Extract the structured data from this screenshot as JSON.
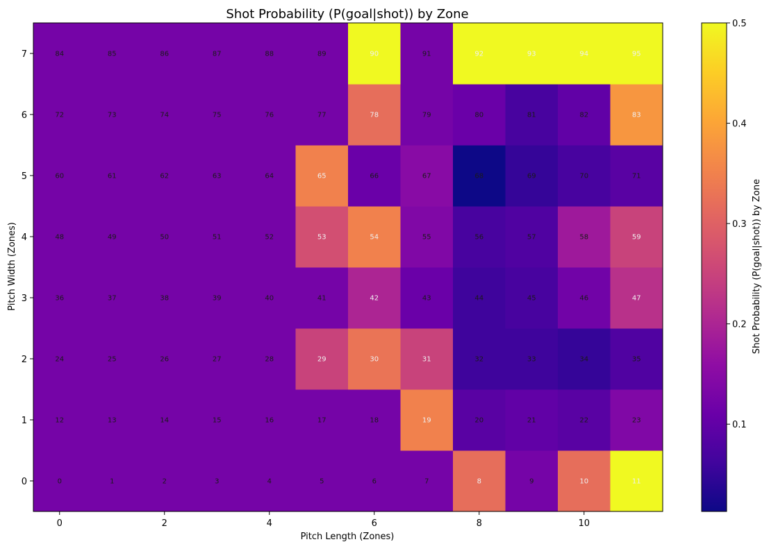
{
  "chart_data": {
    "type": "heatmap",
    "title": "Shot Probability (P(goal|shot)) by Zone",
    "xlabel": "Pitch Length (Zones)",
    "ylabel": "Pitch Width (Zones)",
    "colorbar_label": "Shot Probability (P(goal|shot)) by Zone",
    "colormap": "plasma",
    "x_range": [
      -0.5,
      11.5
    ],
    "y_range": [
      -0.5,
      7.5
    ],
    "x_ticks": [
      0,
      2,
      4,
      6,
      8,
      10
    ],
    "y_ticks": [
      0,
      1,
      2,
      3,
      4,
      5,
      6,
      7
    ],
    "color_range": [
      0.013,
      0.5
    ],
    "colorbar_ticks": [
      0.1,
      0.2,
      0.3,
      0.4,
      0.5
    ],
    "columns": [
      0,
      1,
      2,
      3,
      4,
      5,
      6,
      7,
      8,
      9,
      10,
      11
    ],
    "rows": [
      0,
      1,
      2,
      3,
      4,
      5,
      6,
      7
    ],
    "values": [
      [
        0.125,
        0.125,
        0.125,
        0.125,
        0.125,
        0.125,
        0.125,
        0.125,
        0.32,
        0.125,
        0.32,
        0.5
      ],
      [
        0.125,
        0.125,
        0.125,
        0.125,
        0.125,
        0.125,
        0.125,
        0.35,
        0.09,
        0.1,
        0.09,
        0.14
      ],
      [
        0.125,
        0.125,
        0.125,
        0.125,
        0.125,
        0.25,
        0.33,
        0.25,
        0.06,
        0.06,
        0.05,
        0.08
      ],
      [
        0.125,
        0.125,
        0.125,
        0.125,
        0.125,
        0.125,
        0.2,
        0.11,
        0.06,
        0.07,
        0.12,
        0.22
      ],
      [
        0.125,
        0.125,
        0.125,
        0.125,
        0.125,
        0.27,
        0.35,
        0.14,
        0.07,
        0.08,
        0.18,
        0.25
      ],
      [
        0.125,
        0.125,
        0.125,
        0.125,
        0.125,
        0.35,
        0.11,
        0.15,
        0.013,
        0.05,
        0.07,
        0.09
      ],
      [
        0.125,
        0.125,
        0.125,
        0.125,
        0.125,
        0.125,
        0.32,
        0.125,
        0.11,
        0.07,
        0.1,
        0.38
      ],
      [
        0.125,
        0.125,
        0.125,
        0.125,
        0.125,
        0.125,
        0.5,
        0.125,
        0.5,
        0.5,
        0.5,
        0.5
      ]
    ],
    "cell_labels": [
      [
        "0",
        "1",
        "2",
        "3",
        "4",
        "5",
        "6",
        "7",
        "8",
        "9",
        "10",
        "11"
      ],
      [
        "12",
        "13",
        "14",
        "15",
        "16",
        "17",
        "18",
        "19",
        "20",
        "21",
        "22",
        "23"
      ],
      [
        "24",
        "25",
        "26",
        "27",
        "28",
        "29",
        "30",
        "31",
        "32",
        "33",
        "34",
        "35"
      ],
      [
        "36",
        "37",
        "38",
        "39",
        "40",
        "41",
        "42",
        "43",
        "44",
        "45",
        "46",
        "47"
      ],
      [
        "48",
        "49",
        "50",
        "51",
        "52",
        "53",
        "54",
        "55",
        "56",
        "57",
        "58",
        "59"
      ],
      [
        "60",
        "61",
        "62",
        "63",
        "64",
        "65",
        "66",
        "67",
        "68",
        "69",
        "70",
        "71"
      ],
      [
        "72",
        "73",
        "74",
        "75",
        "76",
        "77",
        "78",
        "79",
        "80",
        "81",
        "82",
        "83"
      ],
      [
        "84",
        "85",
        "86",
        "87",
        "88",
        "89",
        "90",
        "91",
        "92",
        "93",
        "94",
        "95"
      ]
    ],
    "label_colors": {
      "dark": "#1a1a1a",
      "light": "#f0f0f0"
    },
    "axis_color": "#000000"
  }
}
